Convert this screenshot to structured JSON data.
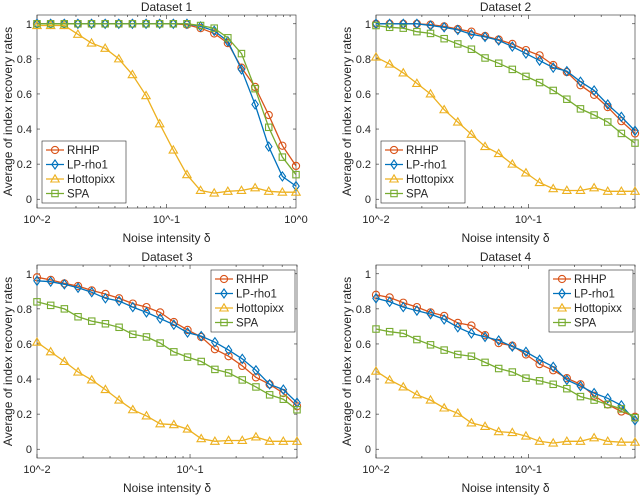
{
  "chart_data": [
    {
      "type": "line",
      "title": "Dataset 1",
      "xlabel": "Noise intensity δ",
      "ylabel": "Average of index recovery rates",
      "xscale": "log",
      "xlim": [
        0.01,
        1
      ],
      "ylim": [
        -0.05,
        1.05
      ],
      "xticks": [
        {
          "v": 0.01,
          "label": "10^-2"
        },
        {
          "v": 0.1,
          "label": "10^-1"
        },
        {
          "v": 1,
          "label": "10^0"
        }
      ],
      "yticks": [
        "0",
        "0.2",
        "0.4",
        "0.6",
        "0.8",
        "1"
      ],
      "legend": "bottom-left",
      "x_range": [
        0.01,
        1
      ],
      "n_points": 20,
      "series": [
        {
          "name": "RHHP",
          "color": "#D95319",
          "marker": "circle",
          "values": [
            1,
            1,
            1,
            1,
            1,
            1,
            1,
            1,
            1,
            1,
            1,
            0.995,
            0.975,
            0.945,
            0.89,
            0.75,
            0.64,
            0.48,
            0.305,
            0.19
          ]
        },
        {
          "name": "LP-rho1",
          "color": "#0072BD",
          "marker": "diamond",
          "values": [
            1,
            1,
            1,
            1,
            1,
            1,
            1,
            1,
            1,
            1,
            1,
            1,
            0.985,
            0.96,
            0.9,
            0.74,
            0.54,
            0.3,
            0.13,
            0.075
          ]
        },
        {
          "name": "Hottopixx",
          "color": "#EDB120",
          "marker": "triangle",
          "values": [
            0.99,
            0.99,
            0.99,
            0.94,
            0.89,
            0.86,
            0.8,
            0.71,
            0.59,
            0.43,
            0.28,
            0.14,
            0.05,
            0.035,
            0.045,
            0.05,
            0.065,
            0.045,
            0.04,
            0.04
          ]
        },
        {
          "name": "SPA",
          "color": "#77AC30",
          "marker": "square",
          "values": [
            1,
            1,
            1,
            1,
            1,
            1,
            1,
            1,
            1,
            1,
            1,
            1,
            0.99,
            0.975,
            0.92,
            0.83,
            0.63,
            0.41,
            0.24,
            0.14
          ]
        }
      ]
    },
    {
      "type": "line",
      "title": "Dataset 2",
      "xlabel": "Noise intensity δ",
      "ylabel": "Average of index recovery rates",
      "xscale": "log",
      "xlim": [
        0.01,
        0.5
      ],
      "ylim": [
        -0.05,
        1.05
      ],
      "xticks": [
        {
          "v": 0.01,
          "label": "10^-2"
        },
        {
          "v": 0.1,
          "label": "10^-1"
        }
      ],
      "yticks": [
        "0",
        "0.2",
        "0.4",
        "0.6",
        "0.8",
        "1"
      ],
      "legend": "bottom-left",
      "x_range": [
        0.01,
        0.5
      ],
      "n_points": 20,
      "series": [
        {
          "name": "RHHP",
          "color": "#D95319",
          "marker": "circle",
          "values": [
            1,
            1,
            1,
            1,
            0.995,
            0.985,
            0.97,
            0.955,
            0.93,
            0.91,
            0.885,
            0.85,
            0.82,
            0.765,
            0.725,
            0.65,
            0.595,
            0.525,
            0.445,
            0.375
          ]
        },
        {
          "name": "LP-rho1",
          "color": "#0072BD",
          "marker": "diamond",
          "values": [
            1,
            1,
            1,
            1,
            0.99,
            0.98,
            0.965,
            0.94,
            0.925,
            0.905,
            0.87,
            0.83,
            0.79,
            0.75,
            0.73,
            0.67,
            0.62,
            0.54,
            0.47,
            0.39
          ]
        },
        {
          "name": "Hottopixx",
          "color": "#EDB120",
          "marker": "triangle",
          "values": [
            0.81,
            0.77,
            0.72,
            0.66,
            0.6,
            0.51,
            0.44,
            0.37,
            0.3,
            0.26,
            0.2,
            0.15,
            0.095,
            0.06,
            0.05,
            0.05,
            0.065,
            0.045,
            0.045,
            0.045
          ]
        },
        {
          "name": "SPA",
          "color": "#77AC30",
          "marker": "square",
          "values": [
            0.99,
            0.98,
            0.975,
            0.955,
            0.945,
            0.915,
            0.885,
            0.855,
            0.805,
            0.775,
            0.74,
            0.7,
            0.665,
            0.62,
            0.57,
            0.515,
            0.48,
            0.44,
            0.375,
            0.32
          ]
        }
      ]
    },
    {
      "type": "line",
      "title": "Dataset 3",
      "xlabel": "Noise intensity δ",
      "ylabel": "Average of index recovery rates",
      "xscale": "log",
      "xlim": [
        0.01,
        0.5
      ],
      "ylim": [
        -0.05,
        1.05
      ],
      "xticks": [
        {
          "v": 0.01,
          "label": "10^-2"
        },
        {
          "v": 0.1,
          "label": "10^-1"
        }
      ],
      "yticks": [
        "0",
        "0.2",
        "0.4",
        "0.6",
        "0.8",
        "1"
      ],
      "legend": "top-right",
      "x_range": [
        0.01,
        0.5
      ],
      "n_points": 20,
      "series": [
        {
          "name": "RHHP",
          "color": "#D95319",
          "marker": "circle",
          "values": [
            0.98,
            0.965,
            0.945,
            0.93,
            0.905,
            0.885,
            0.86,
            0.83,
            0.81,
            0.78,
            0.725,
            0.68,
            0.64,
            0.57,
            0.53,
            0.475,
            0.41,
            0.37,
            0.32,
            0.245
          ]
        },
        {
          "name": "LP-rho1",
          "color": "#0072BD",
          "marker": "diamond",
          "values": [
            0.96,
            0.955,
            0.94,
            0.92,
            0.895,
            0.86,
            0.845,
            0.81,
            0.78,
            0.745,
            0.71,
            0.665,
            0.645,
            0.61,
            0.565,
            0.515,
            0.45,
            0.37,
            0.34,
            0.265
          ]
        },
        {
          "name": "Hottopixx",
          "color": "#EDB120",
          "marker": "triangle",
          "values": [
            0.61,
            0.555,
            0.5,
            0.44,
            0.395,
            0.34,
            0.28,
            0.225,
            0.19,
            0.145,
            0.14,
            0.115,
            0.06,
            0.045,
            0.05,
            0.05,
            0.07,
            0.045,
            0.045,
            0.045
          ]
        },
        {
          "name": "SPA",
          "color": "#77AC30",
          "marker": "square",
          "values": [
            0.84,
            0.82,
            0.8,
            0.755,
            0.73,
            0.715,
            0.695,
            0.655,
            0.64,
            0.605,
            0.555,
            0.525,
            0.5,
            0.455,
            0.435,
            0.395,
            0.355,
            0.31,
            0.285,
            0.225
          ]
        }
      ]
    },
    {
      "type": "line",
      "title": "Dataset 4",
      "xlabel": "Noise intensity δ",
      "ylabel": "Average of index recovery rates",
      "xscale": "log",
      "xlim": [
        0.01,
        0.5
      ],
      "ylim": [
        -0.05,
        1.05
      ],
      "xticks": [
        {
          "v": 0.01,
          "label": "10^-2"
        },
        {
          "v": 0.1,
          "label": "10^-1"
        }
      ],
      "yticks": [
        "0",
        "0.2",
        "0.4",
        "0.6",
        "0.8",
        "1"
      ],
      "legend": "top-right",
      "x_range": [
        0.01,
        0.5
      ],
      "n_points": 20,
      "series": [
        {
          "name": "RHHP",
          "color": "#D95319",
          "marker": "circle",
          "values": [
            0.88,
            0.865,
            0.835,
            0.81,
            0.78,
            0.76,
            0.72,
            0.705,
            0.65,
            0.605,
            0.59,
            0.54,
            0.485,
            0.45,
            0.405,
            0.37,
            0.305,
            0.255,
            0.215,
            0.185
          ]
        },
        {
          "name": "LP-rho1",
          "color": "#0072BD",
          "marker": "diamond",
          "values": [
            0.86,
            0.84,
            0.81,
            0.79,
            0.77,
            0.74,
            0.695,
            0.66,
            0.64,
            0.62,
            0.585,
            0.555,
            0.51,
            0.47,
            0.395,
            0.36,
            0.32,
            0.29,
            0.25,
            0.165
          ]
        },
        {
          "name": "Hottopixx",
          "color": "#EDB120",
          "marker": "triangle",
          "values": [
            0.445,
            0.395,
            0.355,
            0.31,
            0.28,
            0.235,
            0.205,
            0.15,
            0.13,
            0.1,
            0.095,
            0.075,
            0.045,
            0.035,
            0.045,
            0.045,
            0.065,
            0.045,
            0.04,
            0.04
          ]
        },
        {
          "name": "SPA",
          "color": "#77AC30",
          "marker": "square",
          "values": [
            0.685,
            0.67,
            0.66,
            0.625,
            0.595,
            0.565,
            0.54,
            0.53,
            0.495,
            0.46,
            0.44,
            0.405,
            0.39,
            0.37,
            0.345,
            0.3,
            0.28,
            0.255,
            0.23,
            0.18
          ]
        }
      ]
    }
  ]
}
